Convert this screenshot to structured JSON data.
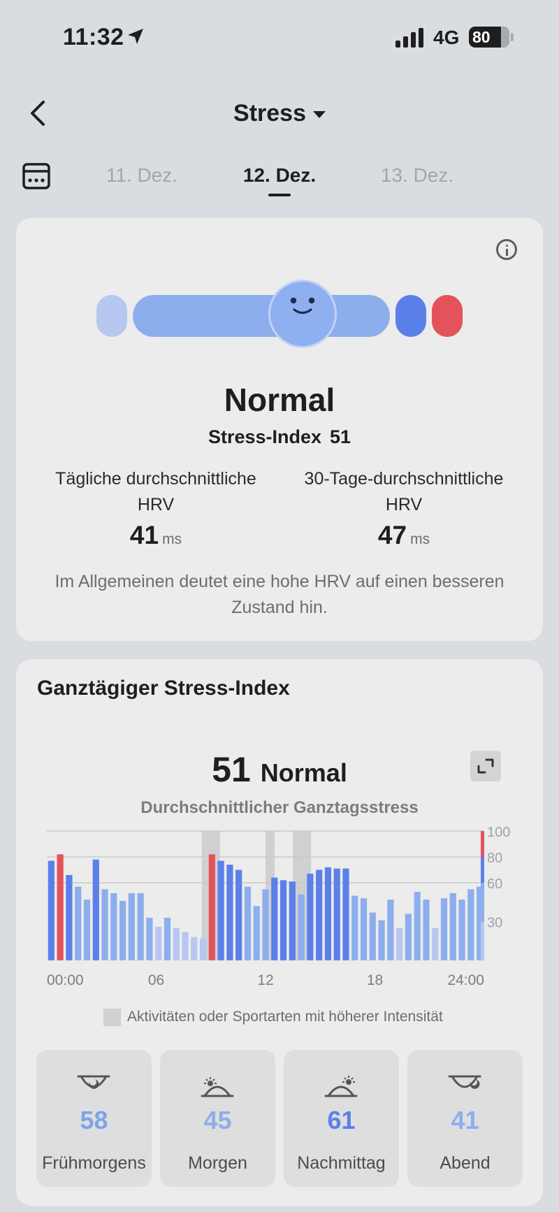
{
  "status_bar": {
    "time": "11:32",
    "network": "4G",
    "battery": "80"
  },
  "header": {
    "title": "Stress"
  },
  "date_tabs": [
    {
      "label": "11. Dez.",
      "active": false
    },
    {
      "label": "12. Dez.",
      "active": true
    },
    {
      "label": "13. Dez.",
      "active": false
    }
  ],
  "summary": {
    "level": "Normal",
    "stress_index_label": "Stress-Index",
    "stress_index_value": "51",
    "daily_hrv_label": "Tägliche durchschnittliche HRV",
    "daily_hrv_value": "41",
    "thirty_day_hrv_label": "30-Tage-durchschnittliche HRV",
    "thirty_day_hrv_value": "47",
    "unit": "ms",
    "note": "Im Allgemeinen deutet eine hohe HRV auf einen besseren Zustand hin.",
    "scale_colors": [
      "#b8c7f0",
      "#8daeed",
      "#5b80ea",
      "#e4535a"
    ]
  },
  "day_section": {
    "title": "Ganztägiger Stress-Index",
    "value": "51",
    "level": "Normal",
    "subtitle": "Durchschnittlicher Ganztagsstress",
    "legend": "Aktivitäten oder Sportarten mit höherer Intensität"
  },
  "chart_data": {
    "type": "bar",
    "x_tick_labels": [
      "00:00",
      "06",
      "12",
      "18",
      "24:00"
    ],
    "x_tick_hours": [
      0,
      6,
      12,
      18,
      24
    ],
    "y_tick_labels": [
      "100",
      "80",
      "60",
      "30"
    ],
    "y_ticks": [
      100,
      80,
      60,
      30
    ],
    "ylim": [
      0,
      100
    ],
    "x_range_hours": [
      0,
      24
    ],
    "gridlines": [
      100,
      80,
      60
    ],
    "values": [
      77,
      82,
      66,
      57,
      47,
      78,
      55,
      52,
      46,
      52,
      52,
      33,
      26,
      33,
      25,
      22,
      18,
      17,
      82,
      77,
      74,
      70,
      57,
      42,
      55,
      64,
      62,
      61,
      51,
      67,
      70,
      72,
      71,
      71,
      50,
      48,
      37,
      31,
      47,
      25,
      36,
      53,
      47,
      25,
      48,
      52,
      47,
      55,
      57
    ],
    "activity_periods_hours": [
      [
        8.5,
        9.5
      ],
      [
        12.0,
        12.5
      ],
      [
        13.5,
        14.5
      ]
    ],
    "level_colors": {
      "relaxed": "#b8c7f0",
      "normal": "#8daeed",
      "medium": "#5b80ea",
      "high": "#e4535a",
      "activity": "#cfd0d2"
    }
  },
  "periods": [
    {
      "value": "58",
      "label": "Frühmorgens",
      "color": "#7fa3e8"
    },
    {
      "value": "45",
      "label": "Morgen",
      "color": "#8daeed"
    },
    {
      "value": "61",
      "label": "Nachmittag",
      "color": "#5b80ea"
    },
    {
      "value": "41",
      "label": "Abend",
      "color": "#8daeed"
    }
  ]
}
